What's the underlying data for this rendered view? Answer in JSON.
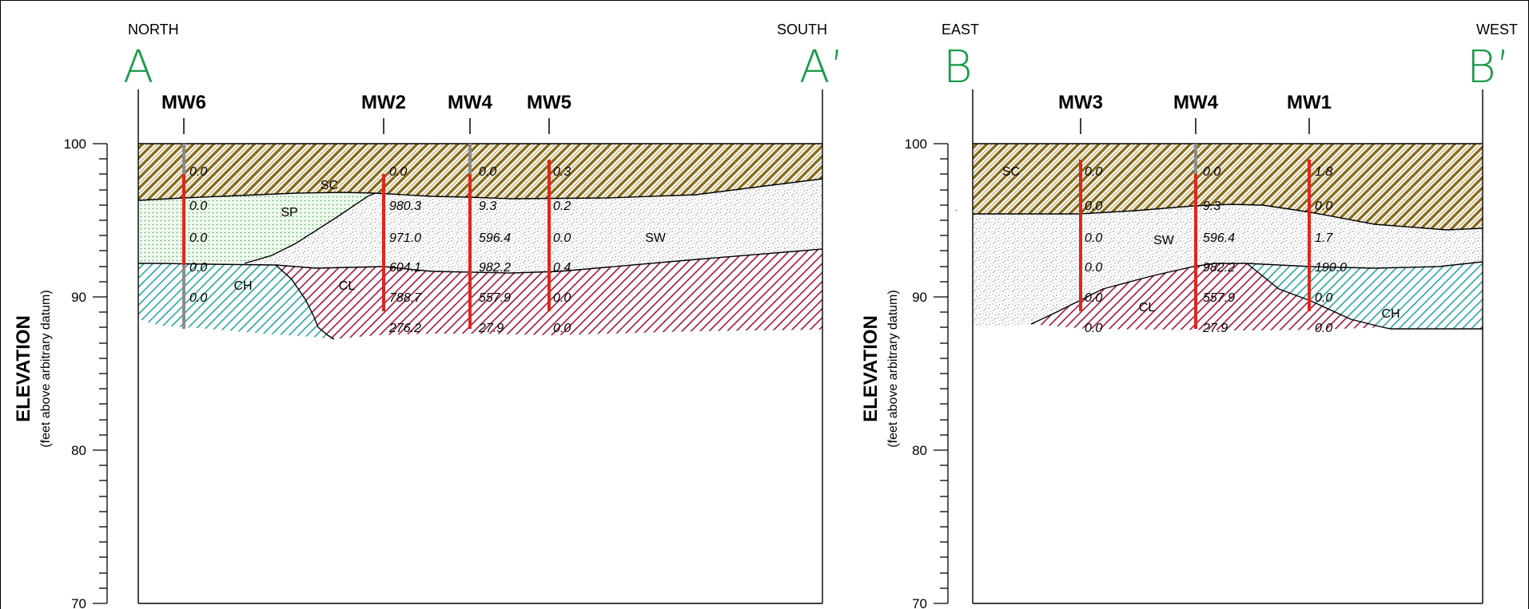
{
  "colors": {
    "sc": "#8a6d1e",
    "sp": "#2f9a3a",
    "sw": "#8a8a8a",
    "cl": "#a3163e",
    "ch": "#2aa6a0",
    "section_letter": "#1a9a4a",
    "contaminated_boring": "#e1251b",
    "clean_boring": "#8c8c8c"
  },
  "axis": {
    "label": "ELEVATION",
    "sublabel": "(feet above arbitrary datum)",
    "ticks": [
      "100",
      "90",
      "80",
      "70"
    ]
  },
  "panels": [
    {
      "left_dir": "NORTH",
      "right_dir": "SOUTH",
      "left_letter": "A",
      "right_letter": "A’",
      "wells": [
        {
          "name": "MW6",
          "values": [
            "0.0",
            "0.0",
            "0.0",
            "0.0",
            "0.0"
          ]
        },
        {
          "name": "MW2",
          "values": [
            "0.0",
            "980.3",
            "971.0",
            "604.1",
            "788.7",
            "276.2"
          ]
        },
        {
          "name": "MW4",
          "values": [
            "0.0",
            "9.3",
            "596.4",
            "982.2",
            "557.9",
            "27.9"
          ]
        },
        {
          "name": "MW5",
          "values": [
            "0.3",
            "0.2",
            "0.0",
            "0.4",
            "0.0",
            "0.0"
          ]
        }
      ],
      "soils": [
        "SC",
        "SP",
        "SW",
        "CH",
        "CL"
      ]
    },
    {
      "left_dir": "EAST",
      "right_dir": "WEST",
      "left_letter": "B",
      "right_letter": "B’",
      "wells": [
        {
          "name": "MW3",
          "values": [
            "0.0",
            "0.0",
            "0.0",
            "0.0",
            "0.0",
            "0.0"
          ]
        },
        {
          "name": "MW4",
          "values": [
            "0.0",
            "9.3",
            "596.4",
            "982.2",
            "557.9",
            "27.9"
          ]
        },
        {
          "name": "MW1",
          "values": [
            "1.8",
            "0.0",
            "1.7",
            "190.0",
            "0.0",
            "0.0"
          ]
        }
      ],
      "soils": [
        "SC",
        "SW",
        "CL",
        "CH"
      ]
    }
  ]
}
